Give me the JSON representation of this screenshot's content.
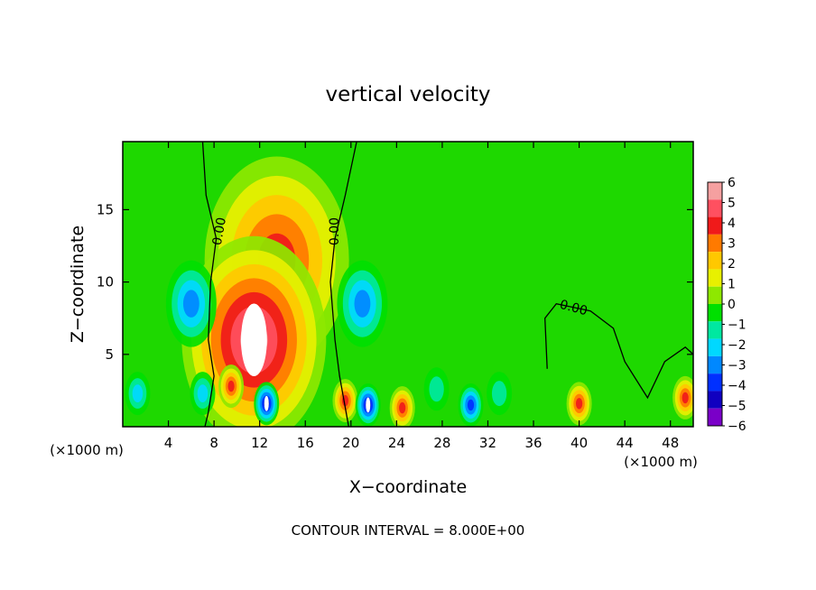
{
  "chart_data": {
    "type": "heatmap",
    "title": "vertical velocity",
    "xlabel": "X−coordinate",
    "ylabel": "Z−coordinate",
    "x_unit_left": "(×1000 m)",
    "x_unit_right": "(×1000 m)",
    "footer": "CONTOUR INTERVAL = 8.000E+00",
    "xlim": [
      0,
      50
    ],
    "ylim": [
      0,
      19.7
    ],
    "x_ticks": [
      4,
      8,
      12,
      16,
      20,
      24,
      28,
      32,
      36,
      40,
      44,
      48
    ],
    "y_ticks": [
      5,
      10,
      15
    ],
    "x_tick_labels": [
      "4",
      "8",
      "12",
      "16",
      "20",
      "24",
      "28",
      "32",
      "36",
      "40",
      "44",
      "48"
    ],
    "y_tick_labels": [
      "5",
      "10",
      "15"
    ],
    "zero_contour_labels": [
      {
        "text": "0.00",
        "x": 8.5,
        "z": 13.5,
        "angle": -80
      },
      {
        "text": "0.00",
        "x": 18.6,
        "z": 13.5,
        "angle": -90
      },
      {
        "text": "0.00",
        "x": 39.5,
        "z": 8.2,
        "angle": 15
      }
    ],
    "colorbar": {
      "levels": [
        6,
        5,
        4,
        3,
        2,
        1,
        0,
        -1,
        -2,
        -3,
        -4,
        -5,
        -6
      ],
      "labels": [
        "6",
        "5",
        "4",
        "3",
        "2",
        "1",
        "0",
        "−1",
        "−2",
        "−3",
        "−4",
        "−5",
        "−6"
      ],
      "colors": [
        "#f5a0a0",
        "#ff5060",
        "#f01a1a",
        "#ff7a00",
        "#ffc800",
        "#e8f000",
        "#8ee800",
        "#00e000",
        "#00e8a0",
        "#00d8ff",
        "#0088ff",
        "#0030ff",
        "#1000c0",
        "#7a00c8"
      ]
    },
    "features": [
      {
        "x": 13.5,
        "z": 11.5,
        "value": 4.5
      },
      {
        "x": 11.5,
        "z": 6.0,
        "value": 7
      },
      {
        "x": 6.0,
        "z": 8.5,
        "value": -3.5
      },
      {
        "x": 21.0,
        "z": 8.5,
        "value": -3.5
      },
      {
        "x": 9.5,
        "z": 2.8,
        "value": 4.5
      },
      {
        "x": 12.6,
        "z": 1.6,
        "value": -6
      },
      {
        "x": 19.5,
        "z": 1.8,
        "value": 4.5
      },
      {
        "x": 21.5,
        "z": 1.5,
        "value": -6
      },
      {
        "x": 24.5,
        "z": 1.3,
        "value": 4.5
      },
      {
        "x": 30.5,
        "z": 1.5,
        "value": -5
      },
      {
        "x": 40.0,
        "z": 1.6,
        "value": 4.5
      },
      {
        "x": 49.3,
        "z": 2.0,
        "value": 4.5
      },
      {
        "x": 1.3,
        "z": 2.3,
        "value": -3.0
      },
      {
        "x": 7.0,
        "z": 2.3,
        "value": -3.0
      },
      {
        "x": 27.5,
        "z": 2.6,
        "value": -2.0
      },
      {
        "x": 33.0,
        "z": 2.3,
        "value": -2.0
      }
    ]
  }
}
